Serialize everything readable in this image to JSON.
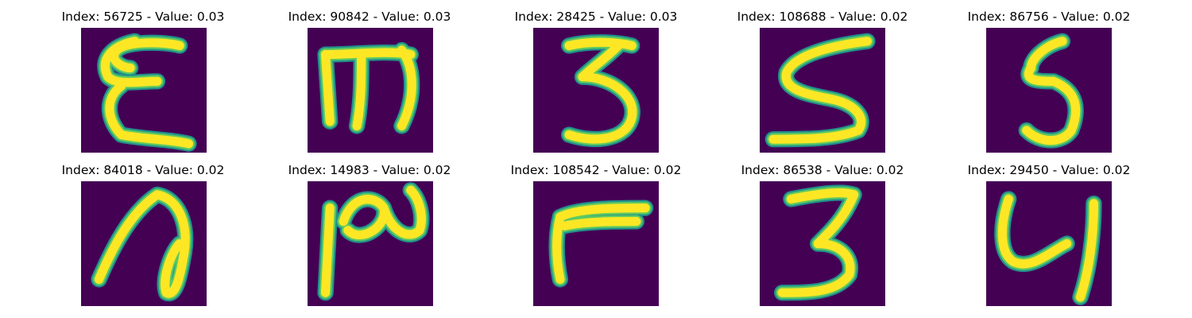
{
  "colors": {
    "background": "#440154",
    "stroke_low": "#21918c",
    "stroke_mid": "#5ec962",
    "stroke_high": "#fde725"
  },
  "panels": [
    {
      "title": "Index: 56725 - Value: 0.03",
      "glyph": "E"
    },
    {
      "title": "Index: 90842 - Value: 0.03",
      "glyph": "m"
    },
    {
      "title": "Index: 28425 - Value: 0.03",
      "glyph": "3"
    },
    {
      "title": "Index: 108688 - Value: 0.02",
      "glyph": "S"
    },
    {
      "title": "Index: 86756 - Value: 0.02",
      "glyph": "5"
    },
    {
      "title": "Index: 84018 - Value: 0.02",
      "glyph": "a"
    },
    {
      "title": "Index: 14983 - Value: 0.02",
      "glyph": "ro"
    },
    {
      "title": "Index: 108542 - Value: 0.02",
      "glyph": "F"
    },
    {
      "title": "Index: 86538 - Value: 0.02",
      "glyph": "3"
    },
    {
      "title": "Index: 29450 - Value: 0.02",
      "glyph": "y"
    }
  ]
}
